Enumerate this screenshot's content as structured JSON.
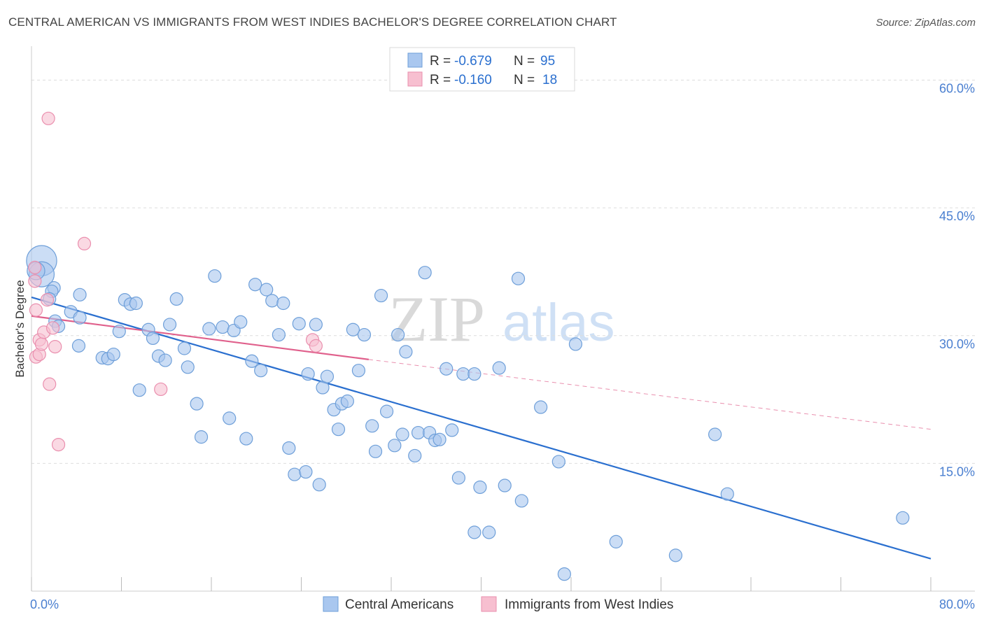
{
  "header": {
    "title": "CENTRAL AMERICAN VS IMMIGRANTS FROM WEST INDIES BACHELOR'S DEGREE CORRELATION CHART",
    "source": "Source: ZipAtlas.com"
  },
  "watermark": {
    "zip": "ZIP",
    "atlas": "atlas"
  },
  "colors": {
    "blue_fill": "#a9c7ef",
    "blue_stroke": "#6e9fd9",
    "blue_line": "#2a6fcf",
    "pink_fill": "#f7bfd0",
    "pink_stroke": "#ea8fae",
    "pink_line": "#e0608c",
    "tick_label": "#4a7fd0",
    "grid": "#dddddd"
  },
  "chart_data": {
    "type": "scatter",
    "title": "CENTRAL AMERICAN VS IMMIGRANTS FROM WEST INDIES BACHELOR'S DEGREE CORRELATION CHART",
    "xlabel": "",
    "ylabel": "Bachelor's Degree",
    "xlim": [
      0,
      80
    ],
    "ylim": [
      0,
      63
    ],
    "x_tick_labels": [
      "0.0%",
      "80.0%"
    ],
    "y_ticks": [
      15,
      30,
      45,
      60
    ],
    "y_tick_labels": [
      "15.0%",
      "30.0%",
      "45.0%",
      "60.0%"
    ],
    "grid": true,
    "legend_position": "top-center",
    "stats": [
      {
        "r_label": "R =",
        "r_value": "-0.679",
        "n_label": "N =",
        "n_value": "95"
      },
      {
        "r_label": "R =",
        "r_value": "-0.160",
        "n_label": "N =",
        "n_value": "18"
      }
    ],
    "series": [
      {
        "name": "Central Americans",
        "color": "#a9c7ef",
        "trend": {
          "x": [
            0,
            80
          ],
          "y": [
            34.5,
            3.8
          ],
          "style": "solid"
        },
        "points": [
          {
            "x": 0.9,
            "y": 38.8,
            "size": 2.4
          },
          {
            "x": 0.9,
            "y": 37.2,
            "size": 2.0
          },
          {
            "x": 0.4,
            "y": 37.6,
            "size": 1.4
          },
          {
            "x": 2.0,
            "y": 35.6
          },
          {
            "x": 1.8,
            "y": 35.2
          },
          {
            "x": 1.6,
            "y": 34.3
          },
          {
            "x": 4.3,
            "y": 34.8
          },
          {
            "x": 2.1,
            "y": 31.7
          },
          {
            "x": 2.4,
            "y": 31.1
          },
          {
            "x": 3.5,
            "y": 32.8
          },
          {
            "x": 4.3,
            "y": 32.1
          },
          {
            "x": 4.2,
            "y": 28.8
          },
          {
            "x": 6.3,
            "y": 27.4
          },
          {
            "x": 6.8,
            "y": 27.3
          },
          {
            "x": 7.3,
            "y": 27.8
          },
          {
            "x": 7.8,
            "y": 30.5
          },
          {
            "x": 8.3,
            "y": 34.2
          },
          {
            "x": 8.8,
            "y": 33.7
          },
          {
            "x": 9.3,
            "y": 33.8
          },
          {
            "x": 9.6,
            "y": 23.6
          },
          {
            "x": 10.4,
            "y": 30.7
          },
          {
            "x": 10.8,
            "y": 29.7
          },
          {
            "x": 11.3,
            "y": 27.6
          },
          {
            "x": 11.9,
            "y": 27.1
          },
          {
            "x": 12.3,
            "y": 31.3
          },
          {
            "x": 12.9,
            "y": 34.3
          },
          {
            "x": 13.6,
            "y": 28.5
          },
          {
            "x": 13.9,
            "y": 26.3
          },
          {
            "x": 14.7,
            "y": 22.0
          },
          {
            "x": 15.1,
            "y": 18.1
          },
          {
            "x": 15.8,
            "y": 30.8
          },
          {
            "x": 16.3,
            "y": 37.0
          },
          {
            "x": 17.0,
            "y": 31.0
          },
          {
            "x": 17.6,
            "y": 20.3
          },
          {
            "x": 18.0,
            "y": 30.6
          },
          {
            "x": 18.6,
            "y": 31.6
          },
          {
            "x": 19.1,
            "y": 17.9
          },
          {
            "x": 19.6,
            "y": 27.0
          },
          {
            "x": 19.9,
            "y": 36.0
          },
          {
            "x": 20.4,
            "y": 25.9
          },
          {
            "x": 20.9,
            "y": 35.4
          },
          {
            "x": 21.4,
            "y": 34.1
          },
          {
            "x": 22.0,
            "y": 30.1
          },
          {
            "x": 22.4,
            "y": 33.8
          },
          {
            "x": 22.9,
            "y": 16.8
          },
          {
            "x": 23.4,
            "y": 13.7
          },
          {
            "x": 23.8,
            "y": 31.4
          },
          {
            "x": 24.4,
            "y": 14.0
          },
          {
            "x": 24.6,
            "y": 25.5
          },
          {
            "x": 25.3,
            "y": 31.3
          },
          {
            "x": 25.6,
            "y": 12.5
          },
          {
            "x": 25.9,
            "y": 23.9
          },
          {
            "x": 26.3,
            "y": 25.2
          },
          {
            "x": 26.9,
            "y": 21.3
          },
          {
            "x": 27.3,
            "y": 19.0
          },
          {
            "x": 27.6,
            "y": 22.0
          },
          {
            "x": 28.1,
            "y": 22.3
          },
          {
            "x": 28.6,
            "y": 30.7
          },
          {
            "x": 29.1,
            "y": 25.9
          },
          {
            "x": 29.6,
            "y": 30.1
          },
          {
            "x": 30.3,
            "y": 19.4
          },
          {
            "x": 30.6,
            "y": 16.4
          },
          {
            "x": 31.1,
            "y": 34.7
          },
          {
            "x": 31.6,
            "y": 21.1
          },
          {
            "x": 32.3,
            "y": 17.1
          },
          {
            "x": 32.6,
            "y": 30.1
          },
          {
            "x": 33.0,
            "y": 18.4
          },
          {
            "x": 33.3,
            "y": 28.1
          },
          {
            "x": 34.1,
            "y": 15.9
          },
          {
            "x": 34.4,
            "y": 18.6
          },
          {
            "x": 35.0,
            "y": 37.4
          },
          {
            "x": 35.4,
            "y": 18.6
          },
          {
            "x": 35.9,
            "y": 17.7
          },
          {
            "x": 36.3,
            "y": 17.8
          },
          {
            "x": 36.9,
            "y": 26.1
          },
          {
            "x": 37.4,
            "y": 18.9
          },
          {
            "x": 38.0,
            "y": 13.3
          },
          {
            "x": 38.4,
            "y": 25.5
          },
          {
            "x": 39.4,
            "y": 25.5
          },
          {
            "x": 39.9,
            "y": 12.2
          },
          {
            "x": 39.4,
            "y": 6.9
          },
          {
            "x": 40.7,
            "y": 6.9
          },
          {
            "x": 41.6,
            "y": 26.2
          },
          {
            "x": 42.1,
            "y": 12.4
          },
          {
            "x": 43.3,
            "y": 36.7
          },
          {
            "x": 43.6,
            "y": 10.6
          },
          {
            "x": 45.3,
            "y": 21.6
          },
          {
            "x": 46.9,
            "y": 15.2
          },
          {
            "x": 47.4,
            "y": 2.0
          },
          {
            "x": 48.4,
            "y": 29.0
          },
          {
            "x": 52.0,
            "y": 5.8
          },
          {
            "x": 57.3,
            "y": 4.2
          },
          {
            "x": 60.8,
            "y": 18.4
          },
          {
            "x": 61.9,
            "y": 11.4
          },
          {
            "x": 77.5,
            "y": 8.6
          }
        ]
      },
      {
        "name": "Immigrants from West Indies",
        "color": "#f7bfd0",
        "trend": {
          "x": [
            0,
            30
          ],
          "y": [
            32.3,
            27.2
          ],
          "style": "solid",
          "dashed_to": {
            "x": 80,
            "y": 19.0
          }
        },
        "points": [
          {
            "x": 0.3,
            "y": 38.0
          },
          {
            "x": 0.3,
            "y": 36.4
          },
          {
            "x": 0.4,
            "y": 33.0
          },
          {
            "x": 0.4,
            "y": 27.5
          },
          {
            "x": 0.7,
            "y": 29.5
          },
          {
            "x": 0.7,
            "y": 27.8
          },
          {
            "x": 0.9,
            "y": 29.0
          },
          {
            "x": 1.1,
            "y": 30.4
          },
          {
            "x": 1.4,
            "y": 34.2
          },
          {
            "x": 1.6,
            "y": 24.3
          },
          {
            "x": 1.9,
            "y": 30.9
          },
          {
            "x": 2.1,
            "y": 28.7
          },
          {
            "x": 2.4,
            "y": 17.2
          },
          {
            "x": 1.5,
            "y": 55.5
          },
          {
            "x": 4.7,
            "y": 40.8
          },
          {
            "x": 11.5,
            "y": 23.7
          },
          {
            "x": 25.0,
            "y": 29.5
          },
          {
            "x": 25.3,
            "y": 28.8
          }
        ]
      }
    ]
  }
}
